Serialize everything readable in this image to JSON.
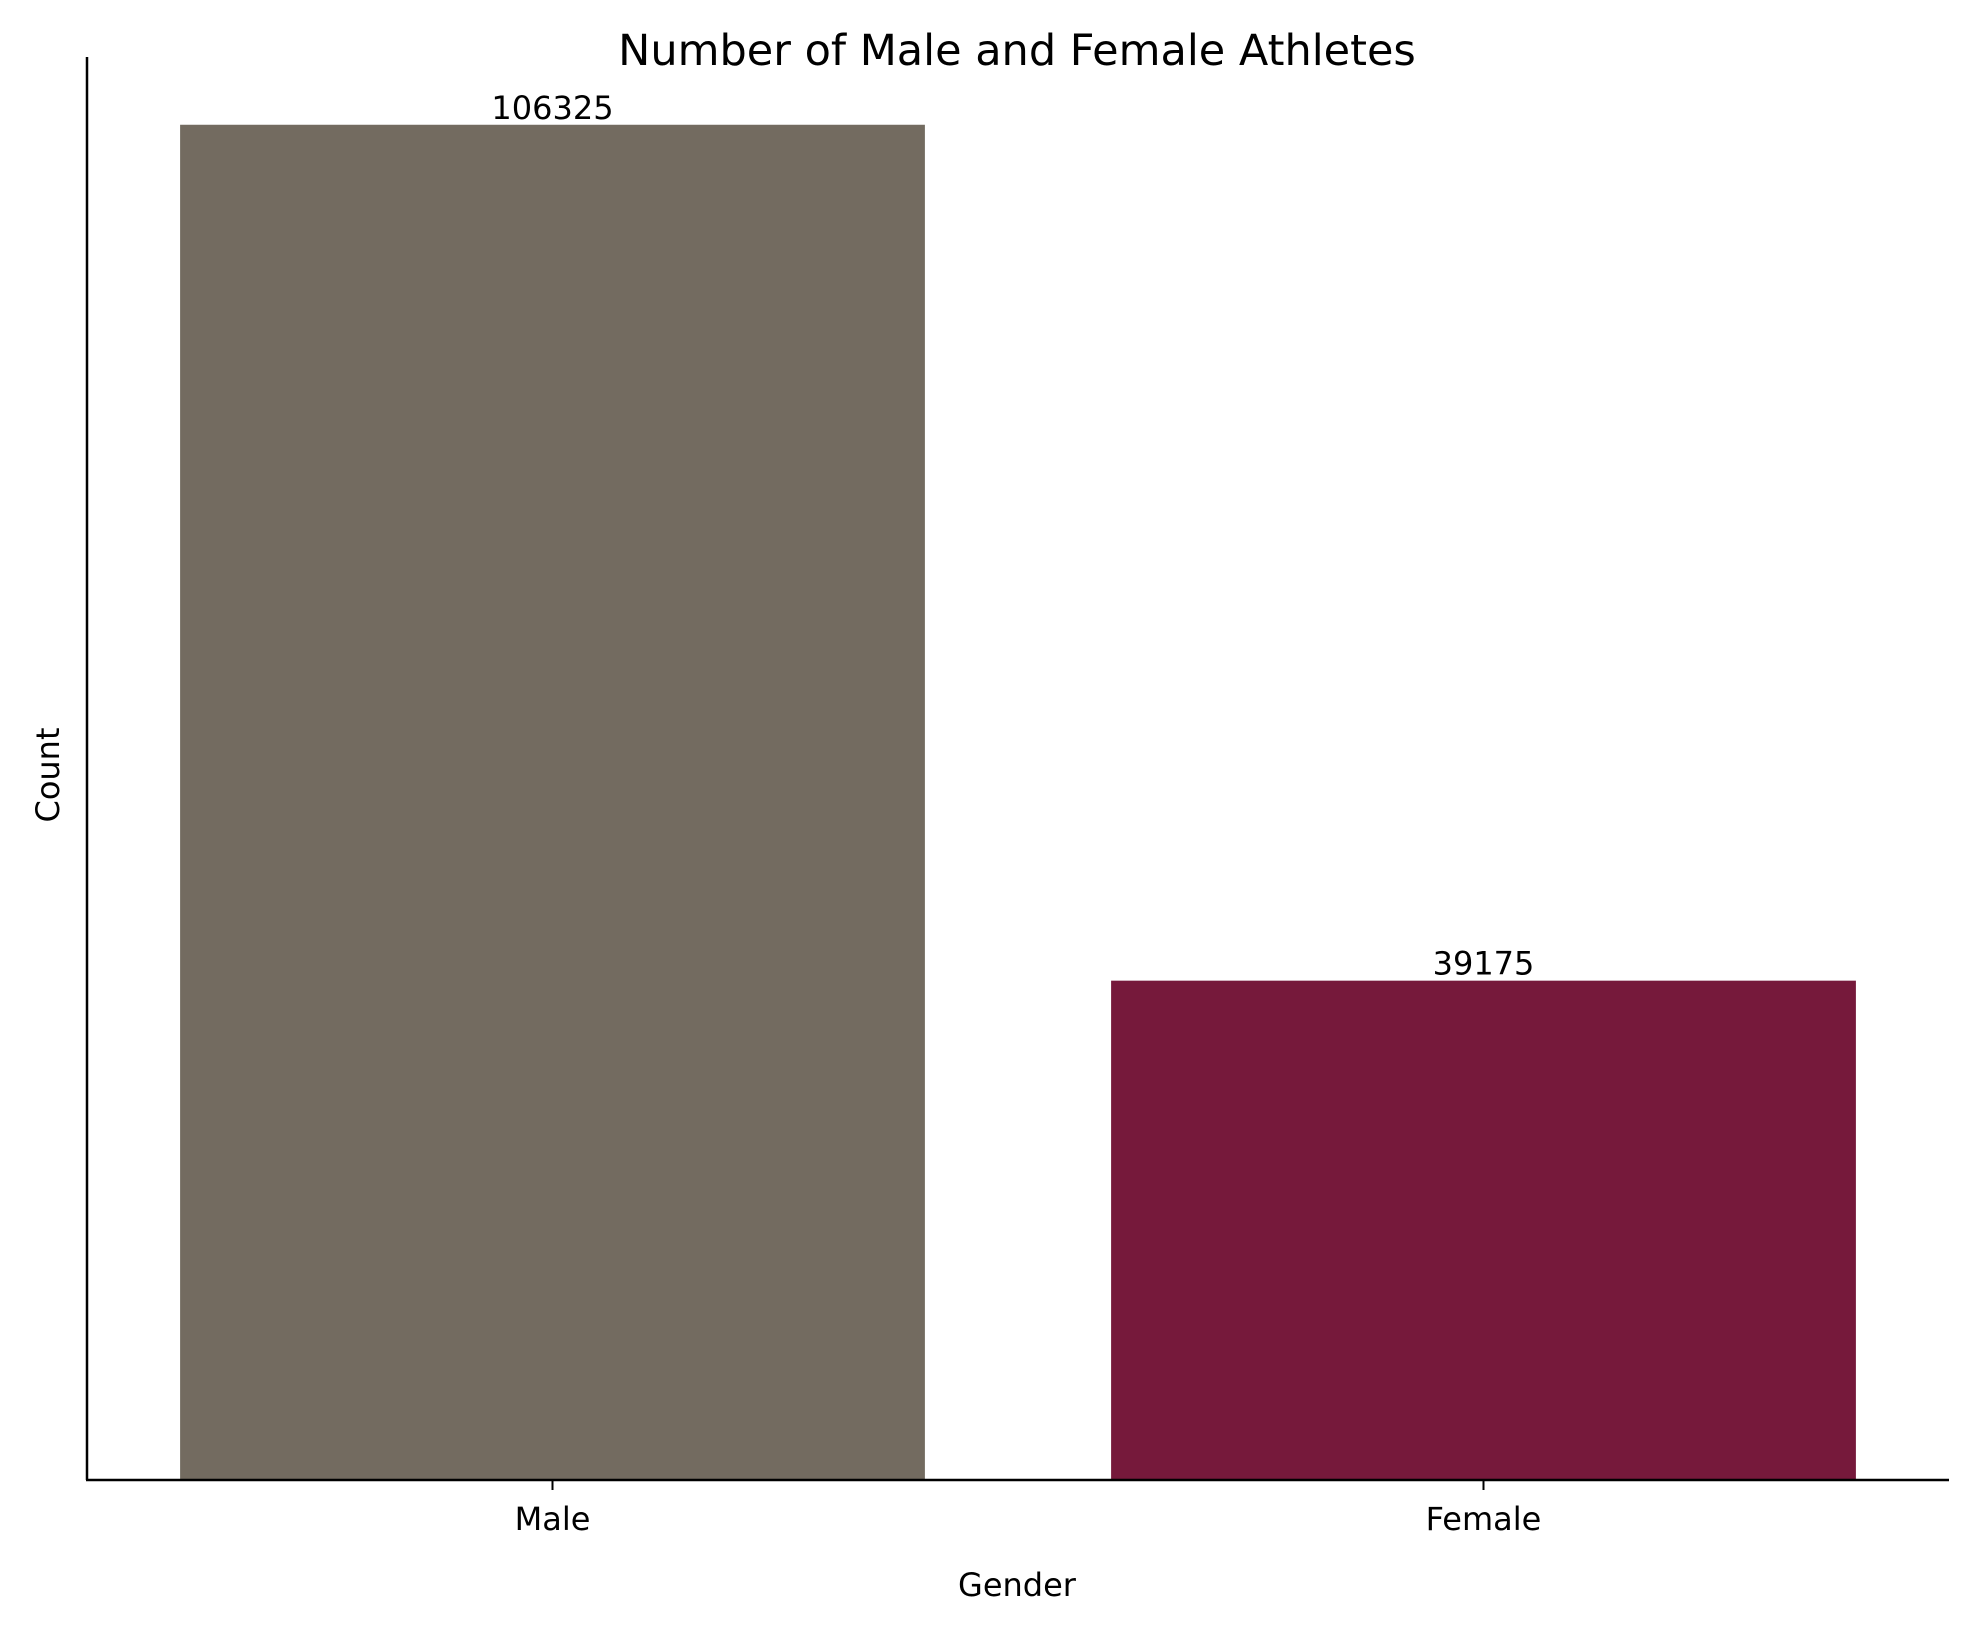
{
  "chart_data": {
    "type": "bar",
    "title": "Number of Male and Female Athletes",
    "xlabel": "Gender",
    "ylabel": "Count",
    "categories": [
      "Male",
      "Female"
    ],
    "values": [
      106325,
      39175
    ],
    "data_labels": [
      "106325",
      "39175"
    ],
    "colors": [
      "#736b60",
      "#76193b"
    ],
    "ylim": [
      0,
      111641
    ],
    "y_ticks_visible": false,
    "grid": false,
    "legend": "none"
  }
}
